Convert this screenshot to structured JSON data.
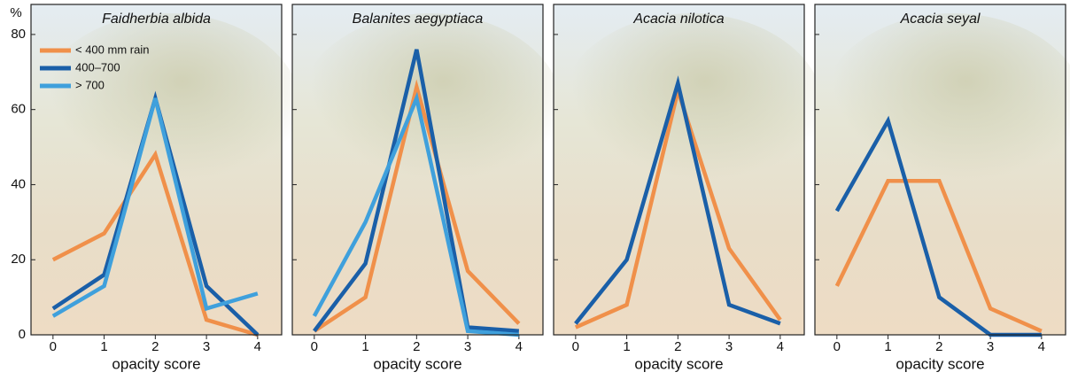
{
  "chart_data": [
    {
      "type": "line",
      "title": "Faidherbia albida",
      "ylabel": "%",
      "xlabel": "opacity score",
      "x": [
        0,
        1,
        2,
        3,
        4
      ],
      "xlim": [
        -0.43,
        4.47
      ],
      "xticks": [
        0,
        1,
        2,
        3,
        4
      ],
      "ylim": [
        0,
        88
      ],
      "yticks": [
        0,
        20,
        40,
        60,
        80
      ],
      "ytick_labels": true,
      "legend": "upper left",
      "series": [
        {
          "name": "< 400 mm rain",
          "color": "#f0904a",
          "values": [
            20,
            27,
            48,
            4,
            0
          ]
        },
        {
          "name": "400–700",
          "color": "#1a5fa8",
          "values": [
            7,
            16,
            63,
            13,
            0
          ]
        },
        {
          "name": "> 700",
          "color": "#3fa0dc",
          "values": [
            5,
            13,
            63,
            7,
            11
          ]
        }
      ]
    },
    {
      "type": "line",
      "title": "Balanites aegyptiaca",
      "xlabel": "opacity score",
      "x": [
        0,
        1,
        2,
        3,
        4
      ],
      "xlim": [
        -0.43,
        4.47
      ],
      "xticks": [
        0,
        1,
        2,
        3,
        4
      ],
      "ylim": [
        0,
        88
      ],
      "yticks": [
        0,
        20,
        40,
        60,
        80
      ],
      "ytick_labels": false,
      "series": [
        {
          "color": "#f0904a",
          "values": [
            1,
            10,
            66,
            17,
            3
          ]
        },
        {
          "color": "#1a5fa8",
          "values": [
            1,
            19,
            76,
            2,
            1
          ]
        },
        {
          "color": "#3fa0dc",
          "values": [
            5,
            30,
            63,
            1,
            0
          ]
        }
      ]
    },
    {
      "type": "line",
      "title": "Acacia nilotica",
      "xlabel": "opacity score",
      "x": [
        0,
        1,
        2,
        3,
        4
      ],
      "xlim": [
        -0.43,
        4.47
      ],
      "xticks": [
        0,
        1,
        2,
        3,
        4
      ],
      "ylim": [
        0,
        88
      ],
      "yticks": [
        0,
        20,
        40,
        60,
        80
      ],
      "ytick_labels": false,
      "series": [
        {
          "color": "#f0904a",
          "values": [
            2,
            8,
            65,
            23,
            4
          ]
        },
        {
          "color": "#1a5fa8",
          "values": [
            3,
            20,
            67,
            8,
            3
          ]
        }
      ]
    },
    {
      "type": "line",
      "title": "Acacia seyal",
      "xlabel": "opacity score",
      "x": [
        0,
        1,
        2,
        3,
        4
      ],
      "xlim": [
        -0.43,
        4.47
      ],
      "xticks": [
        0,
        1,
        2,
        3,
        4
      ],
      "ylim": [
        0,
        88
      ],
      "yticks": [
        0,
        20,
        40,
        60,
        80
      ],
      "ytick_labels": false,
      "series": [
        {
          "color": "#f0904a",
          "values": [
            13,
            41,
            41,
            7,
            1
          ]
        },
        {
          "color": "#1a5fa8",
          "values": [
            33,
            57,
            10,
            0,
            0
          ]
        }
      ]
    }
  ]
}
